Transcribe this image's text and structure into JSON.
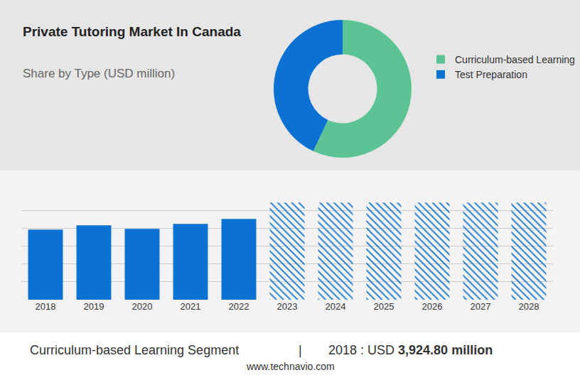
{
  "chart_data": [
    {
      "type": "pie",
      "title": "Private Tutoring Market In Canada",
      "subtitle": "Share by Type (USD million)",
      "categories": [
        "Curriculum-based Learning",
        "Test Preparation"
      ],
      "values": [
        57,
        43
      ],
      "colors": [
        "#5cc494",
        "#0b72d3"
      ],
      "legend": "right"
    },
    {
      "type": "bar",
      "categories": [
        "2018",
        "2019",
        "2020",
        "2021",
        "2022",
        "2023",
        "2024",
        "2025",
        "2026",
        "2027",
        "2028"
      ],
      "series": [
        {
          "color": "#0b72d3",
          "marker": "solid",
          "values": [
            3924.8,
            4160,
            3960,
            4240,
            4520,
            null,
            null,
            null,
            null,
            null,
            null
          ]
        },
        {
          "color": "#0b72d3",
          "marker": "hatched",
          "values": [
            null,
            null,
            null,
            null,
            null,
            5430,
            5430,
            5430,
            5430,
            5430,
            5430
          ]
        }
      ],
      "ylim": [
        0,
        6000
      ],
      "yticks": [
        0,
        1000,
        2000,
        3000,
        4000,
        5000,
        6000
      ],
      "grid": true,
      "tick_labels": "x"
    }
  ],
  "footer": {
    "segment": "Curriculum-based Learning Segment",
    "separator": "|",
    "year_label": "2018 : USD",
    "value_label": "3,924.80 million",
    "source": "www.technavio.com"
  }
}
